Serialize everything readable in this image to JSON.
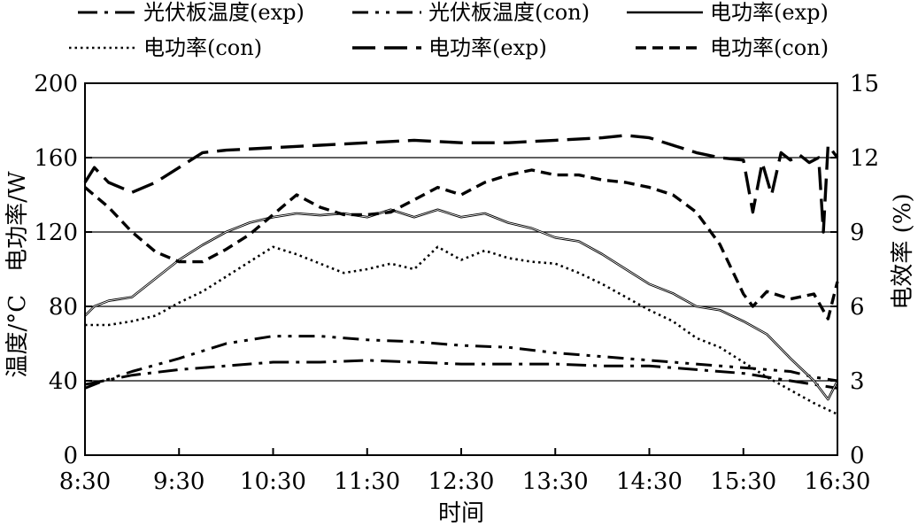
{
  "chart_data": {
    "type": "line",
    "xlabel": "时间",
    "ylabel_left": "温度/°C　电功率/W",
    "ylabel_right": "电效率 (%)",
    "x_ticks": [
      "8:30",
      "9:30",
      "10:30",
      "11:30",
      "12:30",
      "13:30",
      "14:30",
      "15:30",
      "16:30"
    ],
    "x_range_hours": [
      8.5,
      16.5
    ],
    "ylim_left": [
      0,
      200
    ],
    "ylim_right": [
      0,
      15
    ],
    "y_ticks_left": [
      "0",
      "40",
      "80",
      "120",
      "160",
      "200"
    ],
    "y_ticks_right": [
      "0",
      "3",
      "6",
      "9",
      "12",
      "15"
    ],
    "grid_y": true,
    "legend_position": "top",
    "series": [
      {
        "name": "光伏板温度(exp)",
        "axis": "left",
        "dash": "dashdot",
        "x": [
          8.5,
          8.7,
          9.0,
          9.5,
          10.0,
          10.5,
          11.0,
          11.5,
          12.0,
          12.5,
          13.0,
          13.5,
          14.0,
          14.5,
          15.0,
          15.5,
          16.0,
          16.25,
          16.5
        ],
        "y": [
          38,
          40,
          43,
          46,
          48,
          50,
          50,
          51,
          50,
          49,
          49,
          49,
          48,
          48,
          46,
          44,
          40,
          38,
          36
        ]
      },
      {
        "name": "光伏板温度(con)",
        "axis": "left",
        "dash": "dashdotdot",
        "x": [
          8.5,
          8.7,
          9.0,
          9.5,
          10.0,
          10.5,
          11.0,
          11.5,
          12.0,
          12.5,
          13.0,
          13.5,
          14.0,
          14.5,
          15.0,
          15.5,
          16.0,
          16.25,
          16.5
        ],
        "y": [
          36,
          40,
          45,
          52,
          60,
          64,
          64,
          62,
          61,
          59,
          58,
          55,
          53,
          51,
          49,
          47,
          45,
          42,
          40
        ]
      },
      {
        "name": "电功率(exp)",
        "axis": "left",
        "dash": "solid",
        "x": [
          8.5,
          8.6,
          8.75,
          9.0,
          9.25,
          9.5,
          9.75,
          10.0,
          10.25,
          10.5,
          10.75,
          11.0,
          11.25,
          11.5,
          11.75,
          12.0,
          12.25,
          12.5,
          12.75,
          13.0,
          13.25,
          13.5,
          13.75,
          14.0,
          14.25,
          14.5,
          14.75,
          15.0,
          15.25,
          15.5,
          15.75,
          16.0,
          16.25,
          16.4,
          16.5
        ],
        "y": [
          75,
          80,
          83,
          85,
          95,
          105,
          113,
          120,
          125,
          128,
          130,
          129,
          130,
          128,
          132,
          128,
          132,
          128,
          130,
          125,
          122,
          117,
          115,
          108,
          100,
          92,
          87,
          80,
          78,
          72,
          65,
          52,
          40,
          30,
          40
        ]
      },
      {
        "name": "电功率(con)",
        "axis": "left",
        "dash": "dotted",
        "x": [
          8.5,
          8.75,
          9.0,
          9.25,
          9.5,
          9.75,
          10.0,
          10.25,
          10.5,
          10.75,
          11.0,
          11.25,
          11.5,
          11.75,
          12.0,
          12.25,
          12.5,
          12.75,
          13.0,
          13.25,
          13.5,
          13.75,
          14.0,
          14.25,
          14.5,
          14.75,
          15.0,
          15.25,
          15.5,
          15.75,
          16.0,
          16.25,
          16.5
        ],
        "y": [
          70,
          70,
          72,
          75,
          82,
          88,
          96,
          104,
          112,
          108,
          103,
          98,
          100,
          103,
          100,
          112,
          105,
          110,
          106,
          104,
          103,
          98,
          92,
          85,
          78,
          72,
          63,
          58,
          50,
          42,
          35,
          28,
          22
        ]
      },
      {
        "name": "电功率(exp)",
        "axis": "right",
        "dash": "longdash",
        "x": [
          8.5,
          8.6,
          8.75,
          9.0,
          9.25,
          9.5,
          9.75,
          10.0,
          10.5,
          11.0,
          11.5,
          12.0,
          12.5,
          13.0,
          13.5,
          14.0,
          14.25,
          14.5,
          14.75,
          15.0,
          15.25,
          15.5,
          15.6,
          15.7,
          15.8,
          15.9,
          16.0,
          16.1,
          16.2,
          16.3,
          16.35,
          16.4,
          16.5
        ],
        "y": [
          11.0,
          11.6,
          11.0,
          10.6,
          11.0,
          11.6,
          12.2,
          12.3,
          12.4,
          12.5,
          12.6,
          12.7,
          12.6,
          12.6,
          12.7,
          12.8,
          12.9,
          12.8,
          12.5,
          12.2,
          12.0,
          11.9,
          9.8,
          11.8,
          10.5,
          12.2,
          11.9,
          12.1,
          11.8,
          12.0,
          9.0,
          12.5,
          12.0
        ]
      },
      {
        "name": "电功率(con)",
        "axis": "right",
        "dash": "shortdash",
        "x": [
          8.5,
          8.75,
          9.0,
          9.25,
          9.5,
          9.75,
          10.0,
          10.25,
          10.5,
          10.75,
          11.0,
          11.25,
          11.5,
          11.75,
          12.0,
          12.25,
          12.5,
          12.75,
          13.0,
          13.25,
          13.5,
          13.75,
          14.0,
          14.25,
          14.5,
          14.75,
          15.0,
          15.25,
          15.5,
          15.6,
          15.75,
          16.0,
          16.25,
          16.4,
          16.5
        ],
        "y": [
          10.8,
          10.0,
          9.0,
          8.2,
          7.8,
          7.8,
          8.3,
          8.9,
          9.7,
          10.5,
          10.0,
          9.7,
          9.7,
          9.8,
          10.3,
          10.8,
          10.5,
          11.0,
          11.3,
          11.5,
          11.3,
          11.3,
          11.1,
          11.0,
          10.8,
          10.5,
          9.8,
          8.5,
          6.5,
          6.0,
          6.6,
          6.3,
          6.5,
          5.5,
          7.0
        ]
      }
    ]
  }
}
